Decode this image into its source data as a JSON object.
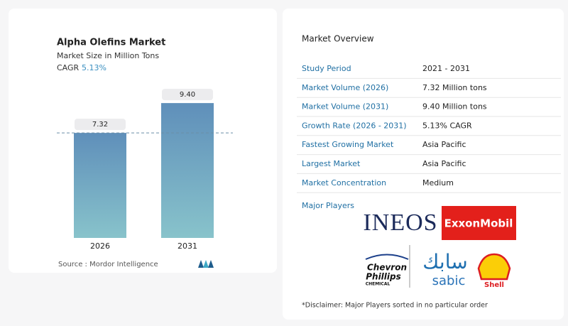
{
  "chart_data": {
    "type": "bar",
    "title": "Alpha Olefins Market",
    "subtitle": "Market Size in Million Tons",
    "cagr_label": "CAGR",
    "cagr_value": "5.13%",
    "categories": [
      "2026",
      "2031"
    ],
    "values": [
      7.32,
      9.4
    ],
    "value_labels": [
      "7.32",
      "9.40"
    ],
    "source": "Source :  Mordor Intelligence"
  },
  "overview": {
    "title": "Market Overview",
    "rows": [
      [
        "Study Period",
        "2021 - 2031"
      ],
      [
        "Market Volume (2026)",
        "7.32 Million tons"
      ],
      [
        "Market Volume (2031)",
        "9.40 Million tons"
      ],
      [
        "Growth Rate (2026 - 2031)",
        "5.13% CAGR"
      ],
      [
        "Fastest Growing Market",
        "Asia Pacific"
      ],
      [
        "Largest Market",
        "Asia Pacific"
      ],
      [
        "Market Concentration",
        "Medium"
      ]
    ],
    "players_title": "Major Players",
    "players": {
      "ineos": "INEOS",
      "exxon": "ExxonMobil",
      "chevron": [
        "Chevron",
        "Phillips",
        "CHEMICAL"
      ],
      "sabic_ar": "سابك",
      "sabic": "sabic",
      "shell": "Shell"
    },
    "disclaimer": "*Disclaimer: Major Players sorted in no particular order"
  }
}
